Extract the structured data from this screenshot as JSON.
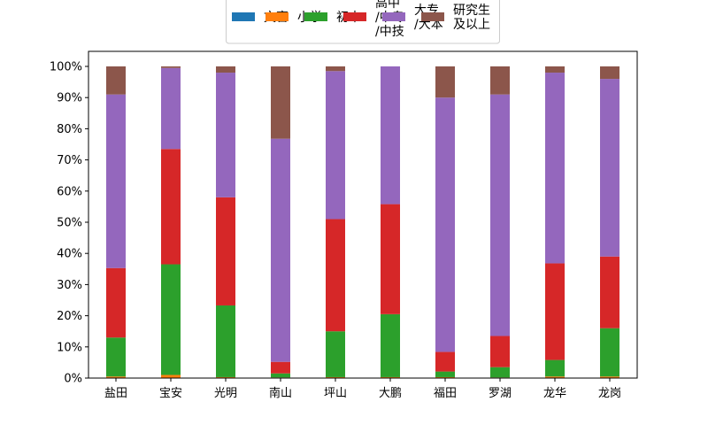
{
  "chart_data": {
    "type": "bar",
    "stacked": true,
    "normalized": true,
    "categories": [
      "盐田",
      "宝安",
      "光明",
      "南山",
      "坪山",
      "大鹏",
      "福田",
      "罗湖",
      "龙华",
      "龙岗"
    ],
    "series": [
      {
        "name": "文盲",
        "color": "#1f77b4",
        "values": [
          0.0,
          0.0,
          0.0,
          0.0,
          0.0,
          0.0,
          0.0,
          0.0,
          0.0,
          0.0
        ]
      },
      {
        "name": "小学",
        "color": "#ff7f0e",
        "values": [
          0.5,
          1.0,
          0.3,
          0.2,
          0.3,
          0.3,
          0.3,
          0.2,
          0.5,
          0.5
        ]
      },
      {
        "name": "初中",
        "color": "#2ca02c",
        "values": [
          12.5,
          35.5,
          23.0,
          1.3,
          14.7,
          20.2,
          1.8,
          3.3,
          5.3,
          15.5
        ]
      },
      {
        "name": "高中\n/中专\n/中技",
        "color": "#d62728",
        "values": [
          22.3,
          37.0,
          34.7,
          3.7,
          36.0,
          35.3,
          6.3,
          10.0,
          31.0,
          23.0
        ]
      },
      {
        "name": "大专\n/大本",
        "color": "#9467bd",
        "values": [
          55.7,
          26.0,
          40.0,
          71.6,
          47.5,
          44.2,
          81.6,
          77.5,
          61.2,
          57.0
        ]
      },
      {
        "name": "研究生\n及以上",
        "color": "#8c564b",
        "values": [
          9.0,
          0.5,
          2.0,
          23.2,
          1.5,
          0.0,
          10.0,
          9.0,
          2.0,
          4.0
        ]
      }
    ],
    "yticks": [
      "0%",
      "10%",
      "20%",
      "30%",
      "40%",
      "50%",
      "60%",
      "70%",
      "80%",
      "90%",
      "100%"
    ],
    "ylim": [
      0,
      100
    ],
    "legend_position": "top-center",
    "grid": false
  }
}
